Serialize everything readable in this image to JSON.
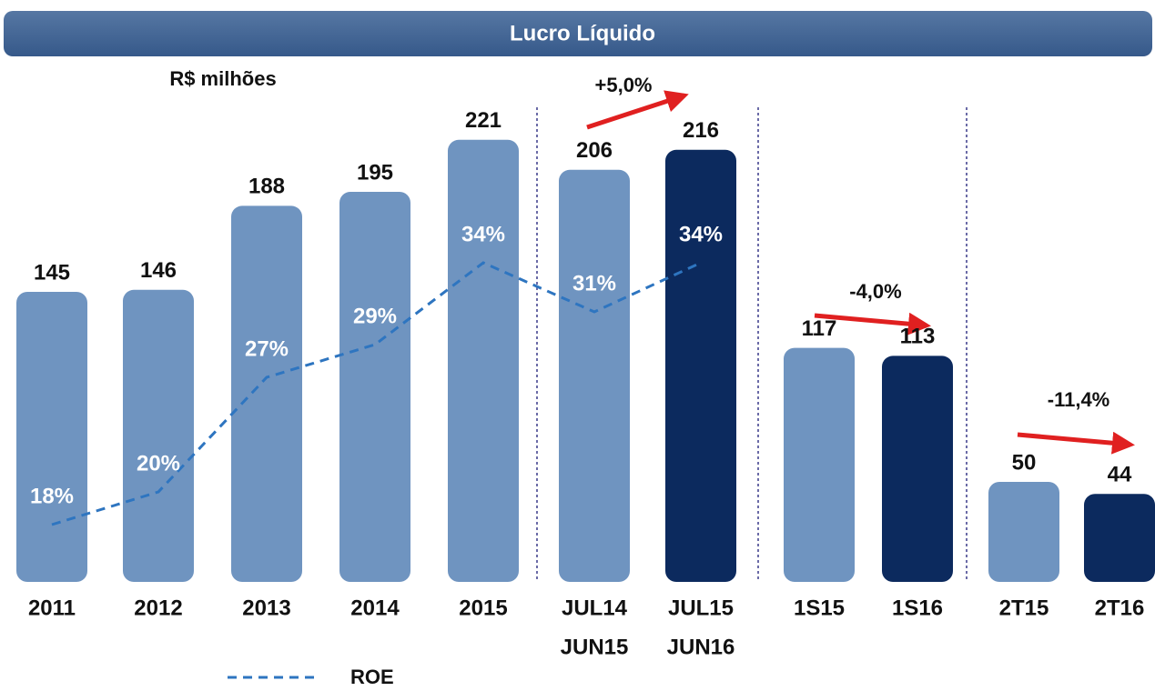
{
  "chart_data": {
    "type": "bar",
    "title": "Lucro Líquido",
    "subtitle": "R$ milhões",
    "categories": [
      [
        "2011"
      ],
      [
        "2012"
      ],
      [
        "2013"
      ],
      [
        "2014"
      ],
      [
        "2015"
      ],
      [
        "JUL14",
        "JUN15"
      ],
      [
        "JUL15",
        "JUN16"
      ],
      [
        "1S15"
      ],
      [
        "1S16"
      ],
      [
        "2T15"
      ],
      [
        "2T16"
      ]
    ],
    "values": [
      145,
      146,
      188,
      195,
      221,
      206,
      216,
      117,
      113,
      50,
      44
    ],
    "colors": [
      "#6f94c0",
      "#6f94c0",
      "#6f94c0",
      "#6f94c0",
      "#6f94c0",
      "#6f94c0",
      "#0c2a5e",
      "#6f94c0",
      "#0c2a5e",
      "#6f94c0",
      "#0c2a5e"
    ],
    "line_series": {
      "name": "ROE",
      "color": "#2e75c0",
      "values": [
        18,
        20,
        27,
        29,
        34,
        31,
        34,
        null,
        null,
        null,
        null
      ],
      "value_labels": [
        "18%",
        "20%",
        "27%",
        "29%",
        "34%",
        "31%",
        "34%",
        null,
        null,
        null,
        null
      ]
    },
    "annotations": [
      "+5,0%",
      "-4,0%",
      "-11,4%"
    ]
  }
}
